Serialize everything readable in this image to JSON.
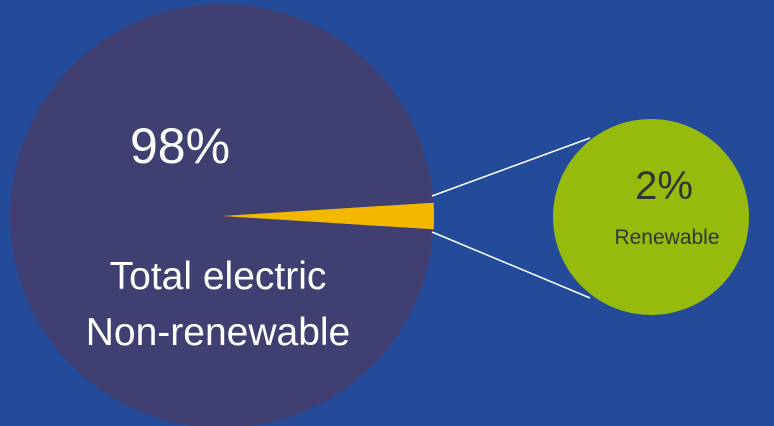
{
  "colors": {
    "background": "#244a9a",
    "main_pie": "#3f3f72",
    "highlight_slice": "#f5b800",
    "detail_circle": "#97bb0c",
    "connector": "#ffffff",
    "light_text": "#ffffff",
    "dark_text": "#333333"
  },
  "chart_data": {
    "type": "pie",
    "categories": [
      "Total electric Non-renewable",
      "Renewable"
    ],
    "values": [
      98,
      2
    ],
    "unit": "%",
    "main_pie": {
      "percent_label": "98%",
      "label_line1": "Total electric",
      "label_line2": "Non-renewable"
    },
    "detail": {
      "percent_label": "2%",
      "label": "Renewable"
    }
  }
}
